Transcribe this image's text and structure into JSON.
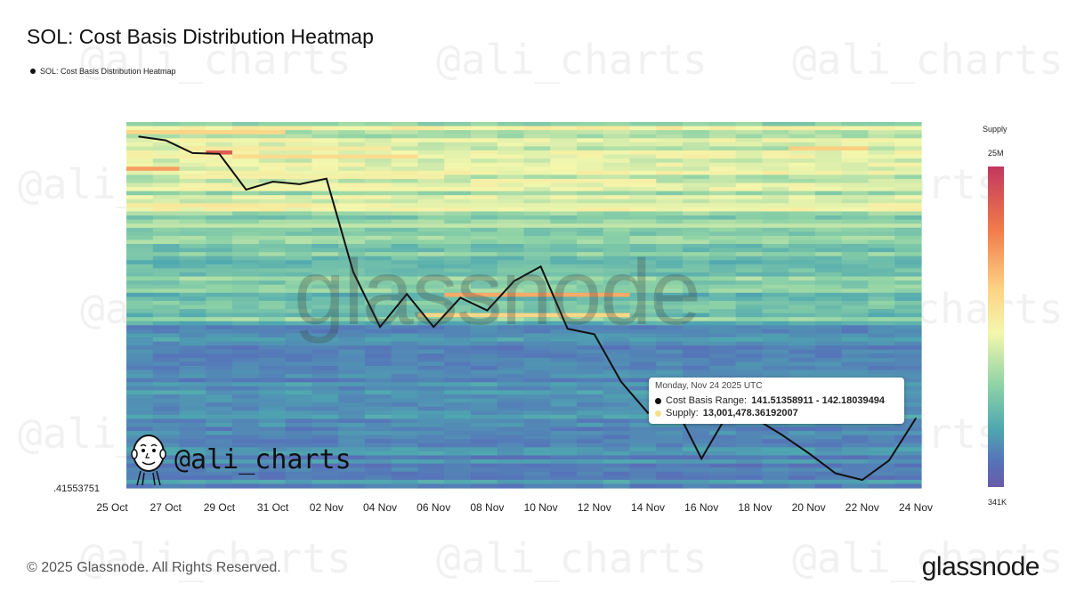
{
  "title": "SOL: Cost Basis Distribution Heatmap",
  "legend_label": "SOL: Cost Basis Distribution Heatmap",
  "min_tick_label": ".41553751",
  "colorbar": {
    "title": "Supply",
    "max_label": "25M",
    "min_label": "341K",
    "colors": [
      "#c2375e",
      "#f17c4a",
      "#fdd283",
      "#f3f7ad",
      "#8fd3a6",
      "#4ea7b0",
      "#5673b9",
      "#6a5ba8"
    ]
  },
  "tooltip": {
    "date": "Monday, Nov 24 2025 UTC",
    "range_label": "Cost Basis Range:",
    "range_value": "141.51358911 - 142.18039494",
    "supply_label": "Supply:",
    "supply_value": "13,001,478.36192007",
    "range_dot_color": "#111111",
    "supply_dot_color": "#f5e08a"
  },
  "footer": {
    "copyright": "© 2025 Glassnode. All Rights Reserved.",
    "logo": "glassnode"
  },
  "watermark": {
    "center": "glassnode",
    "badge": "@ali_charts",
    "background": "@ali_charts"
  },
  "chart_data": {
    "type": "heatmap",
    "title": "SOL: Cost Basis Distribution Heatmap",
    "x_tick_labels": [
      "25 Oct",
      "27 Oct",
      "29 Oct",
      "31 Oct",
      "02 Nov",
      "04 Nov",
      "06 Nov",
      "08 Nov",
      "10 Nov",
      "12 Nov",
      "14 Nov",
      "16 Nov",
      "18 Nov",
      "20 Nov",
      "22 Nov",
      "24 Nov"
    ],
    "x_range": [
      "2025-10-25",
      "2025-11-24"
    ],
    "color_scale_label": "Supply",
    "color_scale_range": [
      "341K",
      "25M"
    ],
    "series": [
      {
        "type": "line",
        "x": [
          "2025-10-26",
          "2025-10-27",
          "2025-10-28",
          "2025-10-29",
          "2025-10-30",
          "2025-10-31",
          "2025-11-01",
          "2025-11-02",
          "2025-11-03",
          "2025-11-04",
          "2025-11-05",
          "2025-11-06",
          "2025-11-07",
          "2025-11-08",
          "2025-11-09",
          "2025-11-10",
          "2025-11-11",
          "2025-11-12",
          "2025-11-13",
          "2025-11-14",
          "2025-11-15",
          "2025-11-16",
          "2025-11-17",
          "2025-11-18",
          "2025-11-19",
          "2025-11-20",
          "2025-11-21",
          "2025-11-22",
          "2025-11-23",
          "2025-11-24"
        ],
        "y": [
          0.96,
          0.95,
          0.915,
          0.913,
          0.815,
          0.837,
          0.83,
          0.845,
          0.59,
          0.44,
          0.53,
          0.44,
          0.52,
          0.485,
          0.565,
          0.605,
          0.435,
          0.42,
          0.29,
          0.205,
          0.225,
          0.08,
          0.205,
          0.19,
          0.145,
          0.095,
          0.04,
          0.022,
          0.075,
          0.19
        ]
      }
    ],
    "tooltip_point": {
      "date": "2025-11-24",
      "cost_basis_range": [
        141.51358911,
        142.18039494
      ],
      "supply": 13001478.36192007
    }
  }
}
